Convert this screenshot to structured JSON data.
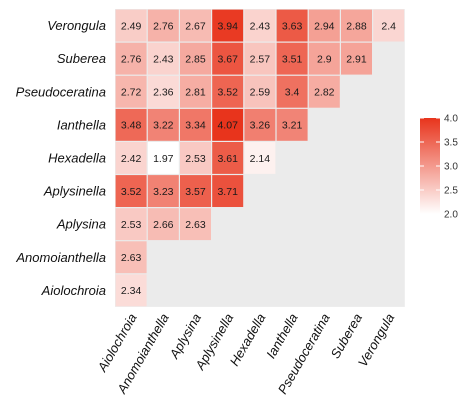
{
  "chart_data": {
    "type": "heatmap",
    "rows": [
      "Verongula",
      "Suberea",
      "Pseudoceratina",
      "Ianthella",
      "Hexadella",
      "Aplysinella",
      "Aplysina",
      "Anomoianthella",
      "Aiolochroia"
    ],
    "columns": [
      "Aiolochroia",
      "Anomoianthella",
      "Aplysina",
      "Aplysinella",
      "Hexadella",
      "Ianthella",
      "Pseudoceratina",
      "Suberea",
      "Verongula"
    ],
    "values": [
      [
        "2.49",
        "2.76",
        "2.67",
        "3.94",
        "2.43",
        "3.63",
        "2.94",
        "2.88",
        "2.4"
      ],
      [
        "2.76",
        "2.43",
        "2.85",
        "3.67",
        "2.57",
        "3.51",
        "2.9",
        "2.91",
        null
      ],
      [
        "2.72",
        "2.36",
        "2.81",
        "3.52",
        "2.59",
        "3.4",
        "2.82",
        null,
        null
      ],
      [
        "3.48",
        "3.22",
        "3.34",
        "4.07",
        "3.26",
        "3.21",
        null,
        null,
        null
      ],
      [
        "2.42",
        "1.97",
        "2.53",
        "3.61",
        "2.14",
        null,
        null,
        null,
        null
      ],
      [
        "3.52",
        "3.23",
        "3.57",
        "3.71",
        null,
        null,
        null,
        null,
        null
      ],
      [
        "2.53",
        "2.66",
        "2.63",
        null,
        null,
        null,
        null,
        null,
        null
      ],
      [
        "2.63",
        null,
        null,
        null,
        null,
        null,
        null,
        null,
        null
      ],
      [
        "2.34",
        null,
        null,
        null,
        null,
        null,
        null,
        null,
        null
      ]
    ],
    "color_scale": {
      "min": 2.0,
      "max": 4.0,
      "low_color": "#ffffff",
      "high_color": "#e8341c"
    },
    "legend": {
      "ticks": [
        "4.0",
        "3.5",
        "3.0",
        "2.5",
        "2.0"
      ],
      "position": "right"
    },
    "empty_cell_color": "#ebebeb",
    "title": "",
    "xlabel": "",
    "ylabel": ""
  }
}
